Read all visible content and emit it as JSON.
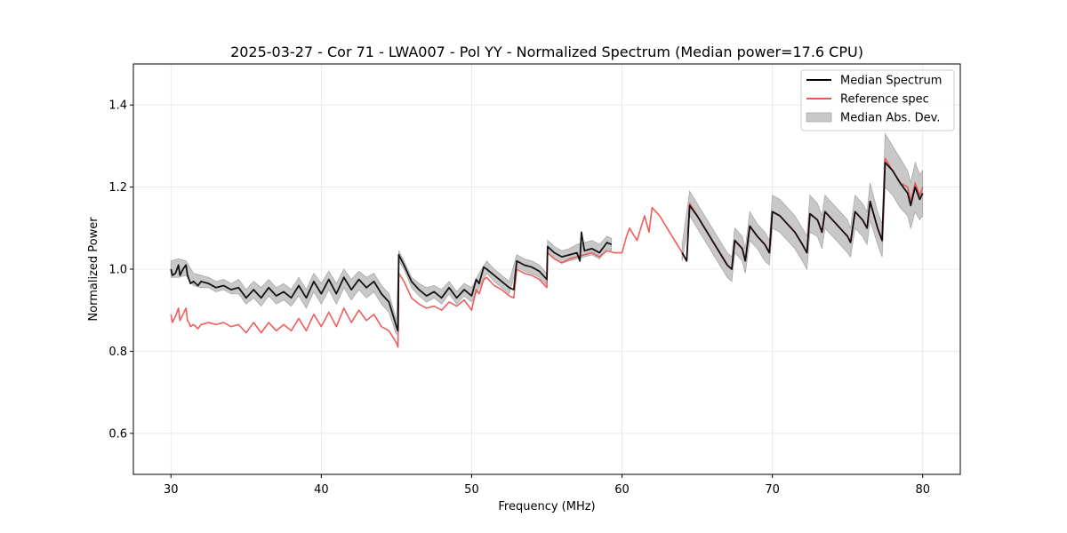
{
  "chart_data": {
    "type": "line",
    "title": "2025-03-27 - Cor 71 - LWA007 - Pol YY - Normalized Spectrum (Median power=17.6 CPU)",
    "xlabel": "Frequency (MHz)",
    "ylabel": "Normalized Power",
    "xlim": [
      27.5,
      82.5
    ],
    "ylim": [
      0.5,
      1.5
    ],
    "xticks": [
      30,
      40,
      50,
      60,
      70,
      80
    ],
    "xtick_labels": [
      "30",
      "40",
      "50",
      "60",
      "70",
      "80"
    ],
    "yticks": [
      0.6,
      0.8,
      1.0,
      1.2,
      1.4
    ],
    "ytick_labels": [
      "0.6",
      "0.8",
      "1.0",
      "1.2",
      "1.4"
    ],
    "grid": true,
    "legend": {
      "position": "top-right",
      "entries": [
        {
          "label": "Median Spectrum",
          "kind": "line",
          "color": "#000000"
        },
        {
          "label": "Reference spec",
          "kind": "line",
          "color": "#ee5555"
        },
        {
          "label": "Median Abs. Dev.",
          "kind": "band",
          "color": "#c8c8c8"
        }
      ]
    },
    "series": [
      {
        "name": "Median Spectrum",
        "color": "#000000",
        "segments": [
          {
            "x": [
              30.0,
              30.1,
              30.3,
              30.5,
              30.6,
              30.8,
              31.0,
              31.1,
              31.2,
              31.3,
              31.5,
              31.8,
              32.0,
              32.5,
              33.0,
              33.5,
              34.0,
              34.5,
              35.0,
              35.5,
              36.0,
              36.5,
              37.0,
              37.5,
              38.0,
              38.5,
              39.0,
              39.5,
              40.0,
              40.5,
              41.0,
              41.5,
              42.0,
              42.5,
              43.0,
              43.5,
              44.0,
              44.5,
              45.0,
              45.1,
              45.15,
              45.5,
              46.0,
              46.5,
              47.0,
              47.5,
              48.0,
              48.5,
              49.0,
              49.5,
              50.0,
              50.3,
              50.5,
              50.8,
              51.0,
              51.5,
              52.0,
              52.5,
              52.8,
              53.0,
              53.5,
              54.0,
              54.5,
              55.0,
              55.05,
              55.5,
              56.0,
              56.5,
              57.0,
              57.2,
              57.3,
              57.5,
              58.0,
              58.5,
              59.0,
              59.3
            ],
            "y": [
              1.0,
              0.985,
              0.99,
              1.01,
              0.985,
              1.0,
              1.01,
              0.985,
              0.975,
              0.965,
              0.97,
              0.96,
              0.97,
              0.965,
              0.955,
              0.96,
              0.95,
              0.955,
              0.93,
              0.95,
              0.93,
              0.955,
              0.935,
              0.945,
              0.93,
              0.96,
              0.93,
              0.97,
              0.94,
              0.975,
              0.94,
              0.98,
              0.95,
              0.975,
              0.955,
              0.97,
              0.94,
              0.92,
              0.86,
              0.85,
              1.035,
              1.01,
              0.97,
              0.95,
              0.935,
              0.945,
              0.93,
              0.955,
              0.93,
              0.95,
              0.935,
              0.975,
              0.965,
              1.005,
              1.0,
              0.985,
              0.97,
              0.955,
              0.95,
              1.02,
              1.01,
              1.005,
              0.995,
              0.975,
              1.055,
              1.04,
              1.03,
              1.035,
              1.04,
              1.02,
              1.09,
              1.045,
              1.05,
              1.04,
              1.065,
              1.06
            ]
          },
          {
            "x": [
              64.0,
              64.3,
              64.5,
              65.0,
              65.5,
              66.0,
              66.5,
              67.0,
              67.3,
              67.5,
              68.0,
              68.2,
              68.5,
              69.0,
              69.5,
              69.8,
              70.0,
              70.5,
              71.0,
              71.5,
              72.0,
              72.3,
              72.5,
              73.0,
              73.3,
              73.5,
              74.0,
              74.5,
              75.0,
              75.2,
              75.5,
              76.0,
              76.3,
              76.5,
              77.0,
              77.3,
              77.5,
              78.0,
              78.5,
              79.0,
              79.2,
              79.5,
              79.8,
              80.0
            ],
            "y": [
              1.04,
              1.02,
              1.155,
              1.13,
              1.1,
              1.07,
              1.04,
              1.01,
              1.0,
              1.07,
              1.05,
              1.02,
              1.105,
              1.08,
              1.06,
              1.04,
              1.14,
              1.13,
              1.11,
              1.09,
              1.06,
              1.04,
              1.135,
              1.12,
              1.09,
              1.14,
              1.12,
              1.1,
              1.08,
              1.065,
              1.14,
              1.12,
              1.1,
              1.165,
              1.1,
              1.07,
              1.26,
              1.24,
              1.21,
              1.185,
              1.155,
              1.2,
              1.17,
              1.185
            ]
          }
        ]
      },
      {
        "name": "Reference spec",
        "color": "#ee5555",
        "segments": [
          {
            "x": [
              30.0,
              30.1,
              30.3,
              30.5,
              30.6,
              30.8,
              31.0,
              31.1,
              31.2,
              31.3,
              31.5,
              31.8,
              32.0,
              32.5,
              33.0,
              33.5,
              34.0,
              34.5,
              35.0,
              35.5,
              36.0,
              36.5,
              37.0,
              37.5,
              38.0,
              38.5,
              39.0,
              39.5,
              40.0,
              40.5,
              41.0,
              41.5,
              42.0,
              42.5,
              43.0,
              43.5,
              44.0,
              44.5,
              45.0,
              45.1,
              45.15,
              45.5,
              46.0,
              46.5,
              47.0,
              47.5,
              48.0,
              48.5,
              49.0,
              49.5,
              50.0,
              50.3,
              50.5,
              50.8,
              51.0,
              51.5,
              52.0,
              52.5,
              52.8,
              53.0,
              53.5,
              54.0,
              54.5,
              55.0,
              55.05,
              55.5,
              56.0,
              56.5,
              57.0,
              57.5,
              58.0,
              58.5,
              59.0,
              59.5,
              60.0,
              60.3,
              60.5,
              61.0,
              61.5,
              61.8,
              62.0,
              62.5,
              63.0,
              63.5,
              64.0,
              64.3,
              64.5,
              65.0,
              65.5,
              66.0,
              66.5,
              67.0,
              67.3,
              67.5,
              68.0,
              68.2,
              68.5,
              69.0,
              69.5,
              69.8,
              70.0,
              70.5,
              71.0,
              71.5,
              72.0,
              72.3,
              72.5,
              73.0,
              73.3,
              73.5,
              74.0,
              74.5,
              75.0,
              75.2,
              75.5,
              76.0,
              76.3,
              76.5,
              77.0,
              77.3,
              77.5,
              78.0,
              78.5,
              79.0,
              79.2,
              79.5,
              79.8,
              80.0
            ],
            "y": [
              0.89,
              0.87,
              0.885,
              0.905,
              0.875,
              0.89,
              0.905,
              0.875,
              0.87,
              0.86,
              0.865,
              0.855,
              0.865,
              0.87,
              0.865,
              0.87,
              0.86,
              0.865,
              0.845,
              0.87,
              0.845,
              0.87,
              0.85,
              0.865,
              0.85,
              0.88,
              0.85,
              0.89,
              0.86,
              0.895,
              0.86,
              0.905,
              0.87,
              0.9,
              0.875,
              0.89,
              0.86,
              0.85,
              0.82,
              0.81,
              0.99,
              0.97,
              0.93,
              0.915,
              0.905,
              0.91,
              0.9,
              0.92,
              0.91,
              0.925,
              0.9,
              0.95,
              0.94,
              0.975,
              0.98,
              0.96,
              0.95,
              0.935,
              0.93,
              1.0,
              0.99,
              0.985,
              0.975,
              0.955,
              1.04,
              1.025,
              1.015,
              1.025,
              1.03,
              1.035,
              1.04,
              1.03,
              1.045,
              1.04,
              1.04,
              1.08,
              1.1,
              1.07,
              1.13,
              1.09,
              1.15,
              1.13,
              1.1,
              1.07,
              1.04,
              1.02,
              1.16,
              1.13,
              1.1,
              1.07,
              1.04,
              1.01,
              1.0,
              1.07,
              1.05,
              1.02,
              1.105,
              1.08,
              1.06,
              1.04,
              1.14,
              1.13,
              1.11,
              1.09,
              1.06,
              1.04,
              1.135,
              1.12,
              1.09,
              1.14,
              1.12,
              1.1,
              1.08,
              1.065,
              1.14,
              1.12,
              1.1,
              1.165,
              1.1,
              1.07,
              1.27,
              1.24,
              1.21,
              1.2,
              1.165,
              1.21,
              1.18,
              1.2
            ]
          }
        ]
      }
    ],
    "bands": [
      {
        "name": "Median Abs. Dev.",
        "color": "#c8c8c8",
        "segments": [
          {
            "x": [
              30.0,
              30.5,
              31.0,
              31.5,
              32.0,
              32.5,
              33.0,
              33.5,
              34.0,
              34.5,
              35.0,
              35.5,
              36.0,
              36.5,
              37.0,
              37.5,
              38.0,
              38.5,
              39.0,
              39.5,
              40.0,
              40.5,
              41.0,
              41.5,
              42.0,
              42.5,
              43.0,
              43.5,
              44.0,
              44.5,
              45.0,
              45.15,
              45.5,
              46.0,
              46.5,
              47.0,
              47.5,
              48.0,
              48.5,
              49.0,
              49.5,
              50.0,
              50.5,
              51.0,
              51.5,
              52.0,
              52.5,
              53.0,
              53.5,
              54.0,
              54.5,
              55.0,
              55.05,
              55.5,
              56.0,
              56.5,
              57.0,
              57.5,
              58.0,
              58.5,
              59.0,
              59.3
            ],
            "lower": [
              0.98,
              0.98,
              0.985,
              0.96,
              0.955,
              0.955,
              0.945,
              0.95,
              0.94,
              0.94,
              0.915,
              0.93,
              0.91,
              0.935,
              0.915,
              0.925,
              0.91,
              0.935,
              0.905,
              0.945,
              0.915,
              0.95,
              0.915,
              0.955,
              0.925,
              0.95,
              0.93,
              0.945,
              0.915,
              0.895,
              0.84,
              1.02,
              1.0,
              0.955,
              0.935,
              0.92,
              0.93,
              0.915,
              0.94,
              0.915,
              0.935,
              0.92,
              0.955,
              0.99,
              0.97,
              0.955,
              0.94,
              1.005,
              0.995,
              0.99,
              0.98,
              0.96,
              1.04,
              1.025,
              1.015,
              1.02,
              1.025,
              1.03,
              1.035,
              1.025,
              1.05,
              1.045
            ],
            "upper": [
              1.02,
              1.025,
              1.02,
              0.99,
              0.985,
              0.98,
              0.97,
              0.975,
              0.965,
              0.975,
              0.95,
              0.97,
              0.955,
              0.975,
              0.955,
              0.965,
              0.95,
              0.98,
              0.95,
              0.99,
              0.965,
              0.995,
              0.965,
              1.0,
              0.975,
              0.995,
              0.98,
              0.99,
              0.96,
              0.94,
              0.875,
              1.045,
              1.02,
              0.98,
              0.965,
              0.955,
              0.96,
              0.95,
              0.97,
              0.945,
              0.965,
              0.955,
              0.99,
              1.02,
              1.0,
              0.985,
              0.97,
              1.035,
              1.025,
              1.02,
              1.01,
              0.99,
              1.07,
              1.055,
              1.045,
              1.05,
              1.06,
              1.065,
              1.07,
              1.06,
              1.08,
              1.075
            ]
          },
          {
            "x": [
              64.0,
              64.5,
              65.0,
              65.5,
              66.0,
              66.5,
              67.0,
              67.3,
              67.5,
              68.0,
              68.2,
              68.5,
              69.0,
              69.5,
              69.8,
              70.0,
              70.5,
              71.0,
              71.5,
              72.0,
              72.3,
              72.5,
              73.0,
              73.3,
              73.5,
              74.0,
              74.5,
              75.0,
              75.2,
              75.5,
              76.0,
              76.3,
              76.5,
              77.0,
              77.3,
              77.5,
              78.0,
              78.5,
              79.0,
              79.2,
              79.5,
              79.8,
              80.0
            ],
            "lower": [
              1.02,
              1.13,
              1.1,
              1.07,
              1.04,
              1.01,
              0.98,
              0.97,
              1.04,
              1.02,
              0.99,
              1.07,
              1.05,
              1.02,
              1.01,
              1.1,
              1.09,
              1.07,
              1.05,
              1.02,
              1.0,
              1.09,
              1.08,
              1.05,
              1.1,
              1.08,
              1.06,
              1.04,
              1.03,
              1.1,
              1.08,
              1.06,
              1.12,
              1.06,
              1.03,
              1.2,
              1.18,
              1.15,
              1.13,
              1.1,
              1.14,
              1.12,
              1.13
            ],
            "upper": [
              1.06,
              1.19,
              1.16,
              1.13,
              1.1,
              1.07,
              1.04,
              1.03,
              1.1,
              1.08,
              1.05,
              1.14,
              1.11,
              1.09,
              1.07,
              1.18,
              1.17,
              1.15,
              1.13,
              1.1,
              1.08,
              1.18,
              1.16,
              1.13,
              1.18,
              1.16,
              1.14,
              1.12,
              1.1,
              1.18,
              1.16,
              1.14,
              1.21,
              1.14,
              1.11,
              1.33,
              1.3,
              1.27,
              1.24,
              1.21,
              1.26,
              1.23,
              1.24
            ]
          }
        ]
      }
    ]
  }
}
